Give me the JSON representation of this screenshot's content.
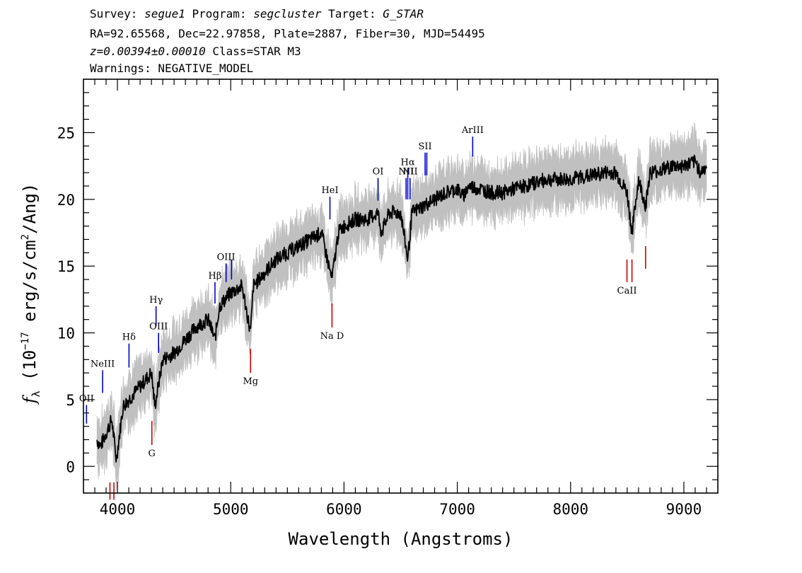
{
  "header": {
    "line1": {
      "survey_label": "Survey: ",
      "survey": "segue1",
      "program_label": " Program: ",
      "program": "segcluster",
      "target_label": " Target: ",
      "target": "G_STAR"
    },
    "line2": "RA=92.65568, Dec=22.97858, Plate=2887, Fiber=30, MJD=54495",
    "line3": {
      "z": "z=0.00394±0.00010",
      "class": " Class=STAR M3"
    },
    "line4": "Warnings: NEGATIVE_MODEL"
  },
  "colors": {
    "flux": "#000000",
    "noise": "#c0c0c0",
    "emission": "#0000cc",
    "absorption": "#cc0000"
  },
  "chart_data": {
    "type": "line",
    "xlabel": "Wavelength (Angstroms)",
    "ylabel": "f_λ (10^-17 erg/s/cm^2/Ang)",
    "xlim": [
      3700,
      9300
    ],
    "ylim": [
      -2,
      29
    ],
    "x_ticks": [
      4000,
      5000,
      6000,
      7000,
      8000,
      9000
    ],
    "y_ticks": [
      0,
      5,
      10,
      15,
      20,
      25
    ],
    "x_tick_labels": [
      "4000",
      "5000",
      "6000",
      "7000",
      "8000",
      "9000"
    ],
    "y_tick_labels": [
      "0",
      "5",
      "10",
      "15",
      "20",
      "25"
    ],
    "ylabel_parts": {
      "f": "f",
      "sub": "λ",
      "open": " (10",
      "exp": "−17",
      "mid": " erg/s/cm",
      "sq": "2",
      "close": "/Ang)"
    },
    "grid": false,
    "series": [
      {
        "style": "spectrum",
        "x": [
          3820,
          3850,
          3900,
          3950,
          3990,
          4050,
          4100,
          4150,
          4200,
          4250,
          4300,
          4330,
          4400,
          4500,
          4600,
          4700,
          4800,
          4861,
          4900,
          5000,
          5100,
          5175,
          5200,
          5300,
          5400,
          5500,
          5600,
          5700,
          5800,
          5893,
          5950,
          6000,
          6100,
          6200,
          6300,
          6330,
          6400,
          6500,
          6563,
          6600,
          6700,
          6800,
          6900,
          7000,
          7050,
          7100,
          7200,
          7300,
          7400,
          7500,
          7600,
          7700,
          7800,
          7900,
          8000,
          8100,
          8200,
          8300,
          8400,
          8498,
          8542,
          8600,
          8662,
          8700,
          8800,
          8900,
          9000,
          9100,
          9150,
          9200
        ],
        "y": [
          2,
          1.5,
          2.5,
          3.5,
          0.5,
          4.5,
          5,
          5.5,
          6,
          6.5,
          7,
          4.5,
          8,
          8.5,
          9.5,
          10.5,
          11,
          9.5,
          12,
          13,
          13.5,
          10,
          13.5,
          14.5,
          15.5,
          16,
          16.5,
          17,
          17.5,
          14,
          17.5,
          18,
          18.5,
          18.5,
          19,
          17.5,
          19,
          19,
          15.5,
          19,
          19.5,
          20,
          20.5,
          20.8,
          20.2,
          21,
          20.8,
          20.5,
          20.5,
          20.8,
          21,
          21.3,
          21.5,
          21.5,
          21.5,
          21.7,
          21.8,
          22,
          22,
          20.5,
          17.5,
          21.5,
          19.5,
          22,
          22.2,
          22.5,
          22.5,
          22.8,
          22,
          22.5
        ]
      }
    ],
    "emission_lines": [
      {
        "label": "OII",
        "x": 3727,
        "y0": 3.2,
        "y1": 4.6
      },
      {
        "label": "NeIII",
        "x": 3869,
        "y0": 5.5,
        "y1": 7.2
      },
      {
        "label": "Hδ",
        "x": 4102,
        "y0": 7.4,
        "y1": 9.2
      },
      {
        "label": "Hγ",
        "x": 4341,
        "y0": 10.5,
        "y1": 12.0
      },
      {
        "label": "OIII",
        "x": 4363,
        "y0": 8.5,
        "y1": 10.0
      },
      {
        "label": "Hβ",
        "x": 4861,
        "y0": 12.2,
        "y1": 13.8
      },
      {
        "label": "OIII",
        "x": 4959,
        "y0": 13.8,
        "y1": 15.2
      },
      {
        "label": "",
        "x": 5007,
        "y0": 14.0,
        "y1": 15.5
      },
      {
        "label": "HeI",
        "x": 5876,
        "y0": 18.5,
        "y1": 20.2
      },
      {
        "label": "OI",
        "x": 6300,
        "y0": 19.9,
        "y1": 21.6
      },
      {
        "label": "NII",
        "x": 6548,
        "y0": 20.0,
        "y1": 21.6
      },
      {
        "label": "Hα",
        "x": 6563,
        "y0": 20.0,
        "y1": 22.3
      },
      {
        "label": "NII",
        "x": 6583,
        "y0": 20.0,
        "y1": 21.6
      },
      {
        "label": "SII",
        "x": 6716,
        "y0": 21.8,
        "y1": 23.5
      },
      {
        "label": "",
        "x": 6731,
        "y0": 21.8,
        "y1": 23.5
      },
      {
        "label": "ArIII",
        "x": 7136,
        "y0": 23.2,
        "y1": 24.7
      }
    ],
    "absorption_lines": [
      {
        "label": "",
        "x": 3934,
        "y0": -2.5,
        "y1": -1.2
      },
      {
        "label": "",
        "x": 3969,
        "y0": -2.5,
        "y1": -1.2
      },
      {
        "label": "G",
        "x": 4304,
        "y0": 1.6,
        "y1": 3.4
      },
      {
        "label": "Mg",
        "x": 5175,
        "y0": 7.0,
        "y1": 8.8
      },
      {
        "label": "Na D",
        "x": 5894,
        "y0": 10.4,
        "y1": 12.2
      },
      {
        "label": "CaII",
        "x": 8498,
        "y0": 13.8,
        "y1": 15.5
      },
      {
        "label": "",
        "x": 8542,
        "y0": 13.8,
        "y1": 15.5
      },
      {
        "label": "",
        "x": 8662,
        "y0": 14.8,
        "y1": 16.5
      }
    ]
  }
}
